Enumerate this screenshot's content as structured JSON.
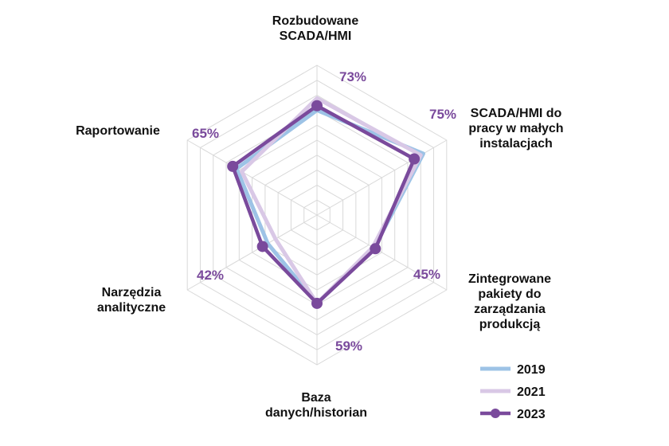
{
  "chart_data": {
    "type": "radar",
    "axes": [
      [
        "Rozbudowane",
        "SCADA/HMI"
      ],
      [
        "SCADA/HMI do",
        "pracy w małych",
        "instalacjach"
      ],
      [
        "Zintegrowane",
        "pakiety do",
        "zarządzania",
        "produkcją"
      ],
      [
        "Baza",
        "danych/historian"
      ],
      [
        "Narzędzia",
        "analityczne"
      ],
      [
        "Raportowanie"
      ]
    ],
    "series": [
      {
        "name": "2019",
        "color": "#9dc3e6",
        "values": [
          70,
          82,
          44,
          59,
          38,
          62
        ]
      },
      {
        "name": "2021",
        "color": "#d9c8e6",
        "values": [
          78,
          80,
          43,
          59,
          32,
          58
        ]
      },
      {
        "name": "2023",
        "color": "#7a4a9c",
        "values": [
          73,
          75,
          45,
          59,
          42,
          65
        ]
      }
    ],
    "data_labels": [
      "73%",
      "75%",
      "45%",
      "59%",
      "42%",
      "65%"
    ],
    "data_label_series": "2023",
    "range": [
      0,
      100
    ],
    "grid_rings": 10,
    "legend_position": "bottom-right"
  }
}
